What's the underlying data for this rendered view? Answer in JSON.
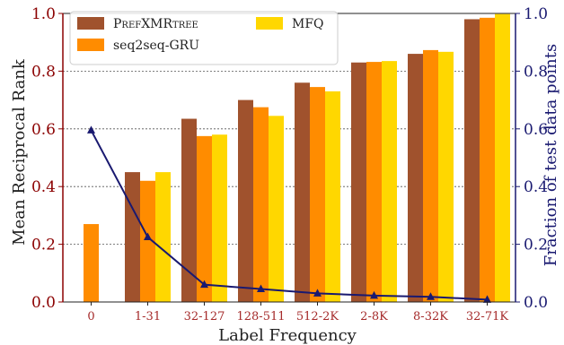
{
  "chart_data": {
    "type": "bar",
    "title": "",
    "xlabel": "Label Frequency",
    "ylabel": "Mean Reciprocal Rank",
    "y2label": "Fraction of test data points",
    "ylim": [
      0,
      1
    ],
    "y2lim": [
      0,
      1
    ],
    "yticks": [
      "0.0",
      "0.2",
      "0.4",
      "0.6",
      "0.8",
      "1.0"
    ],
    "y2ticks": [
      "0.0",
      "0.2",
      "0.4",
      "0.6",
      "0.8",
      "1.0"
    ],
    "grid": "horizontal dotted",
    "legend_position": "top-left",
    "categories": [
      "0",
      "1-31",
      "32-127",
      "128-511",
      "512-2K",
      "2-8K",
      "8-32K",
      "32-71K"
    ],
    "series": [
      {
        "name": "PrefXMRtree",
        "color": "#A0522D",
        "values": [
          null,
          0.45,
          0.635,
          0.7,
          0.76,
          0.83,
          0.86,
          0.98
        ]
      },
      {
        "name": "seq2seq-GRU",
        "color": "#FF8C00",
        "values": [
          0.27,
          0.42,
          0.575,
          0.675,
          0.745,
          0.832,
          0.873,
          0.985
        ]
      },
      {
        "name": "MFQ",
        "color": "#FFD700",
        "values": [
          null,
          0.45,
          0.58,
          0.645,
          0.73,
          0.835,
          0.867,
          0.998
        ]
      }
    ],
    "line_series": {
      "color": "#191970",
      "axis": "right",
      "values": [
        0.595,
        0.225,
        0.06,
        0.045,
        0.03,
        0.022,
        0.018,
        0.008
      ]
    },
    "colors": {
      "left_axis": "#8B0000",
      "right_axis": "#191970",
      "tick_label": "#A52A2A"
    }
  }
}
